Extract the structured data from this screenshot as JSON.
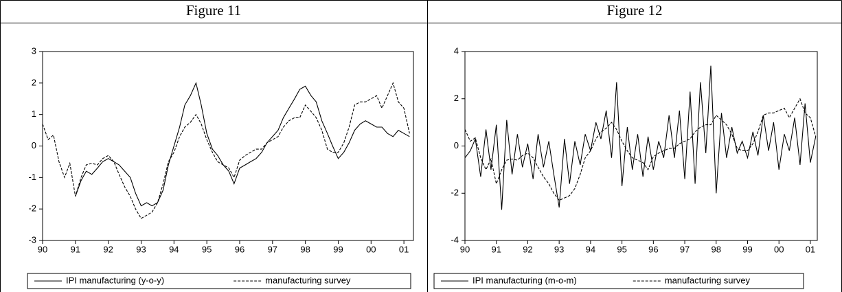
{
  "chart_data": [
    {
      "type": "line",
      "title": "Figure 11",
      "x": [
        1990,
        1990.17,
        1990.33,
        1990.5,
        1990.67,
        1990.83,
        1991,
        1991.17,
        1991.33,
        1991.5,
        1991.67,
        1991.83,
        1992,
        1992.17,
        1992.33,
        1992.5,
        1992.67,
        1992.83,
        1993,
        1993.17,
        1993.33,
        1993.5,
        1993.67,
        1993.83,
        1994,
        1994.17,
        1994.33,
        1994.5,
        1994.67,
        1994.83,
        1995,
        1995.17,
        1995.33,
        1995.5,
        1995.67,
        1995.83,
        1996,
        1996.17,
        1996.33,
        1996.5,
        1996.67,
        1996.83,
        1997,
        1997.17,
        1997.33,
        1997.5,
        1997.67,
        1997.83,
        1998,
        1998.17,
        1998.33,
        1998.5,
        1998.67,
        1998.83,
        1999,
        1999.17,
        1999.33,
        1999.5,
        1999.67,
        1999.83,
        2000,
        2000.17,
        2000.33,
        2000.5,
        2000.67,
        2000.83,
        2001,
        2001.17
      ],
      "series": [
        {
          "name": "IPI manufacturing (y-o-y)",
          "color": "#000000",
          "line_style": "solid",
          "values": [
            null,
            null,
            null,
            null,
            null,
            null,
            -1.6,
            -1.1,
            -0.8,
            -0.9,
            -0.7,
            -0.5,
            -0.4,
            -0.5,
            -0.6,
            -0.8,
            -1.0,
            -1.5,
            -1.9,
            -1.8,
            -1.9,
            -1.8,
            -1.4,
            -0.6,
            0.0,
            0.6,
            1.3,
            1.6,
            2.0,
            1.3,
            0.4,
            -0.1,
            -0.3,
            -0.6,
            -0.8,
            -1.2,
            -0.7,
            -0.6,
            -0.5,
            -0.4,
            -0.2,
            0.1,
            0.3,
            0.5,
            0.9,
            1.2,
            1.5,
            1.8,
            1.9,
            1.6,
            1.4,
            0.8,
            0.4,
            0.0,
            -0.4,
            -0.2,
            0.1,
            0.5,
            0.7,
            0.8,
            0.7,
            0.6,
            0.6,
            0.4,
            0.3,
            0.5,
            0.4,
            0.3
          ]
        },
        {
          "name": "manufacturing survey",
          "color": "#000000",
          "line_style": "dashed",
          "values": [
            0.7,
            0.2,
            0.35,
            -0.5,
            -1.0,
            -0.55,
            -1.6,
            -1.0,
            -0.6,
            -0.55,
            -0.6,
            -0.4,
            -0.3,
            -0.5,
            -0.9,
            -1.3,
            -1.6,
            -2.0,
            -2.3,
            -2.2,
            -2.1,
            -1.8,
            -1.2,
            -0.5,
            -0.2,
            0.3,
            0.6,
            0.75,
            1.0,
            0.7,
            0.2,
            -0.2,
            -0.5,
            -0.6,
            -0.7,
            -1.0,
            -0.45,
            -0.3,
            -0.2,
            -0.1,
            -0.1,
            0.1,
            0.2,
            0.3,
            0.6,
            0.8,
            0.9,
            0.9,
            1.3,
            1.1,
            0.9,
            0.5,
            -0.1,
            -0.2,
            -0.2,
            0.1,
            0.6,
            1.3,
            1.4,
            1.4,
            1.5,
            1.6,
            1.2,
            1.6,
            2.0,
            1.4,
            1.2,
            0.4
          ]
        }
      ],
      "xlim": [
        1990,
        2001.29
      ],
      "xticks": [
        {
          "value": 1990,
          "label": "90"
        },
        {
          "value": 1991,
          "label": "91"
        },
        {
          "value": 1992,
          "label": "92"
        },
        {
          "value": 1993,
          "label": "93"
        },
        {
          "value": 1994,
          "label": "94"
        },
        {
          "value": 1995,
          "label": "95"
        },
        {
          "value": 1996,
          "label": "96"
        },
        {
          "value": 1997,
          "label": "97"
        },
        {
          "value": 1998,
          "label": "98"
        },
        {
          "value": 1999,
          "label": "99"
        },
        {
          "value": 2000,
          "label": "00"
        },
        {
          "value": 2001,
          "label": "01"
        }
      ],
      "ylim": [
        -3,
        3
      ],
      "yticks": [
        -3,
        -2,
        -1,
        0,
        1,
        2,
        3
      ]
    },
    {
      "type": "line",
      "title": "Figure 12",
      "x": [
        1990,
        1990.17,
        1990.33,
        1990.5,
        1990.67,
        1990.83,
        1991,
        1991.17,
        1991.33,
        1991.5,
        1991.67,
        1991.83,
        1992,
        1992.17,
        1992.33,
        1992.5,
        1992.67,
        1992.83,
        1993,
        1993.17,
        1993.33,
        1993.5,
        1993.67,
        1993.83,
        1994,
        1994.17,
        1994.33,
        1994.5,
        1994.67,
        1994.83,
        1995,
        1995.17,
        1995.33,
        1995.5,
        1995.67,
        1995.83,
        1996,
        1996.17,
        1996.33,
        1996.5,
        1996.67,
        1996.83,
        1997,
        1997.17,
        1997.33,
        1997.5,
        1997.67,
        1997.83,
        1998,
        1998.17,
        1998.33,
        1998.5,
        1998.67,
        1998.83,
        1999,
        1999.17,
        1999.33,
        1999.5,
        1999.67,
        1999.83,
        2000,
        2000.17,
        2000.33,
        2000.5,
        2000.67,
        2000.83,
        2001,
        2001.17
      ],
      "series": [
        {
          "name": "IPI manufacturing (m-o-m)",
          "color": "#000000",
          "line_style": "solid",
          "values": [
            -0.5,
            -0.2,
            0.3,
            -1.3,
            0.7,
            -1.0,
            0.9,
            -2.7,
            1.1,
            -1.2,
            0.5,
            -0.9,
            0.1,
            -1.4,
            0.5,
            -0.9,
            0.2,
            -1.2,
            -2.6,
            0.3,
            -1.6,
            0.2,
            -0.8,
            0.5,
            -0.2,
            1.0,
            0.3,
            1.5,
            -0.5,
            2.7,
            -1.7,
            0.8,
            -1.0,
            0.5,
            -1.3,
            0.4,
            -1.0,
            0.2,
            -0.5,
            1.3,
            -0.5,
            1.5,
            -1.4,
            2.3,
            -1.6,
            2.7,
            -0.3,
            3.4,
            -2.0,
            1.4,
            -0.5,
            0.8,
            -0.3,
            0.2,
            -0.5,
            0.6,
            -0.4,
            1.3,
            -0.2,
            1.0,
            -1.0,
            0.5,
            -0.2,
            1.2,
            -0.8,
            1.8,
            -0.7,
            0.4
          ]
        },
        {
          "name": "manufacturing survey",
          "color": "#000000",
          "line_style": "dashed",
          "values": [
            0.7,
            0.2,
            0.35,
            -0.5,
            -1.0,
            -0.55,
            -1.6,
            -1.0,
            -0.6,
            -0.55,
            -0.6,
            -0.4,
            -0.3,
            -0.5,
            -0.9,
            -1.3,
            -1.6,
            -2.0,
            -2.3,
            -2.2,
            -2.1,
            -1.8,
            -1.2,
            -0.5,
            -0.2,
            0.3,
            0.6,
            0.75,
            1.0,
            0.7,
            0.2,
            -0.2,
            -0.5,
            -0.6,
            -0.7,
            -1.0,
            -0.45,
            -0.3,
            -0.2,
            -0.1,
            -0.1,
            0.1,
            0.2,
            0.3,
            0.6,
            0.8,
            0.9,
            0.9,
            1.3,
            1.1,
            0.9,
            0.5,
            -0.1,
            -0.2,
            -0.2,
            0.1,
            0.6,
            1.3,
            1.4,
            1.4,
            1.5,
            1.6,
            1.2,
            1.6,
            2.0,
            1.4,
            1.2,
            0.4
          ]
        }
      ],
      "xlim": [
        1990,
        2001.22
      ],
      "xticks": [
        {
          "value": 1990,
          "label": "90"
        },
        {
          "value": 1991,
          "label": "91"
        },
        {
          "value": 1992,
          "label": "92"
        },
        {
          "value": 1993,
          "label": "93"
        },
        {
          "value": 1994,
          "label": "94"
        },
        {
          "value": 1995,
          "label": "95"
        },
        {
          "value": 1996,
          "label": "96"
        },
        {
          "value": 1997,
          "label": "97"
        },
        {
          "value": 1998,
          "label": "98"
        },
        {
          "value": 1999,
          "label": "99"
        },
        {
          "value": 2000,
          "label": "00"
        },
        {
          "value": 2001,
          "label": "01"
        }
      ],
      "ylim": [
        -4,
        4
      ],
      "yticks": [
        -4,
        -2,
        0,
        2,
        4
      ]
    }
  ]
}
